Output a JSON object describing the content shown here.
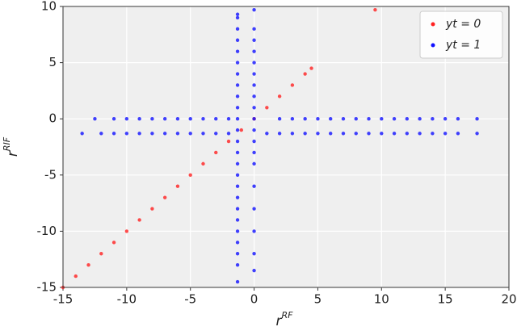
{
  "chart_data": {
    "type": "scatter",
    "xlabel": "r",
    "xlabel_sup": "RF",
    "ylabel": "r",
    "ylabel_sup": "RIF",
    "xlim": [
      -15,
      20
    ],
    "ylim": [
      -15,
      10
    ],
    "xticks": [
      -15,
      -10,
      -5,
      0,
      5,
      10,
      15,
      20
    ],
    "yticks": [
      -15,
      -10,
      -5,
      0,
      5,
      10
    ],
    "grid": true,
    "legend": "upper right",
    "series": [
      {
        "name": "yt = 0",
        "color": "#ff2020",
        "x": [
          -15,
          -14,
          -13,
          -12,
          -11,
          -10,
          -9,
          -8,
          -7,
          -6,
          -5,
          -4,
          -3,
          -2,
          -1,
          0,
          1,
          2,
          3,
          4,
          4.5,
          9.5
        ],
        "y": [
          -15,
          -14,
          -13,
          -12,
          -11,
          -10,
          -9,
          -8,
          -7,
          -6,
          -5,
          -4,
          -3,
          -2,
          -1,
          0,
          1,
          2,
          3,
          4,
          4.5,
          9.7
        ]
      },
      {
        "name": "yt = 1",
        "color": "#1010ff",
        "x": [
          -1.3,
          -1.3,
          -1.3,
          -1.3,
          -1.3,
          -1.3,
          -1.3,
          -1.3,
          -1.3,
          -1.3,
          -1.3,
          -1.3,
          -1.3,
          -1.3,
          -1.3,
          -1.3,
          -1.3,
          -1.3,
          -1.3,
          -1.3,
          -1.3,
          -1.3,
          -1.3,
          -1.3,
          -1.3,
          0,
          0,
          0,
          0,
          0,
          0,
          0,
          0,
          0,
          0,
          0,
          0,
          0,
          0,
          0,
          0,
          0,
          0,
          0,
          -12.5,
          -11,
          -10,
          -9,
          -8,
          -7,
          -6,
          -5,
          -4,
          -3,
          -2,
          2,
          3,
          4,
          5,
          6,
          7,
          8,
          9,
          10,
          11,
          12,
          13,
          14,
          15,
          16,
          17.5,
          -13.5,
          -12,
          -11,
          -10,
          -9,
          -8,
          -7,
          -6,
          -5,
          -4,
          -3,
          -2,
          1,
          2,
          3,
          4,
          5,
          6,
          7,
          8,
          9,
          10,
          11,
          12,
          13,
          14,
          15,
          16,
          17.5
        ],
        "y": [
          -14.5,
          -13,
          -12,
          -11,
          -10,
          -9,
          -8,
          -7,
          -6,
          -5,
          -4,
          -3,
          -2,
          -1,
          0,
          1,
          2,
          3,
          4,
          5,
          6,
          7,
          8,
          9,
          9.3,
          -13.5,
          -12,
          -10,
          -8,
          -6,
          -4,
          -3,
          -2,
          -1,
          0,
          1,
          2,
          3,
          4,
          5,
          6,
          7,
          8,
          9.7,
          0,
          0,
          0,
          0,
          0,
          0,
          0,
          0,
          0,
          0,
          0,
          0,
          0,
          0,
          0,
          0,
          0,
          0,
          0,
          0,
          0,
          0,
          0,
          0,
          0,
          0,
          0,
          -1.3,
          -1.3,
          -1.3,
          -1.3,
          -1.3,
          -1.3,
          -1.3,
          -1.3,
          -1.3,
          -1.3,
          -1.3,
          -1.3,
          -1.3,
          -1.3,
          -1.3,
          -1.3,
          -1.3,
          -1.3,
          -1.3,
          -1.3,
          -1.3,
          -1.3,
          -1.3,
          -1.3,
          -1.3,
          -1.3,
          -1.3,
          -1.3,
          -1.3
        ]
      }
    ]
  }
}
